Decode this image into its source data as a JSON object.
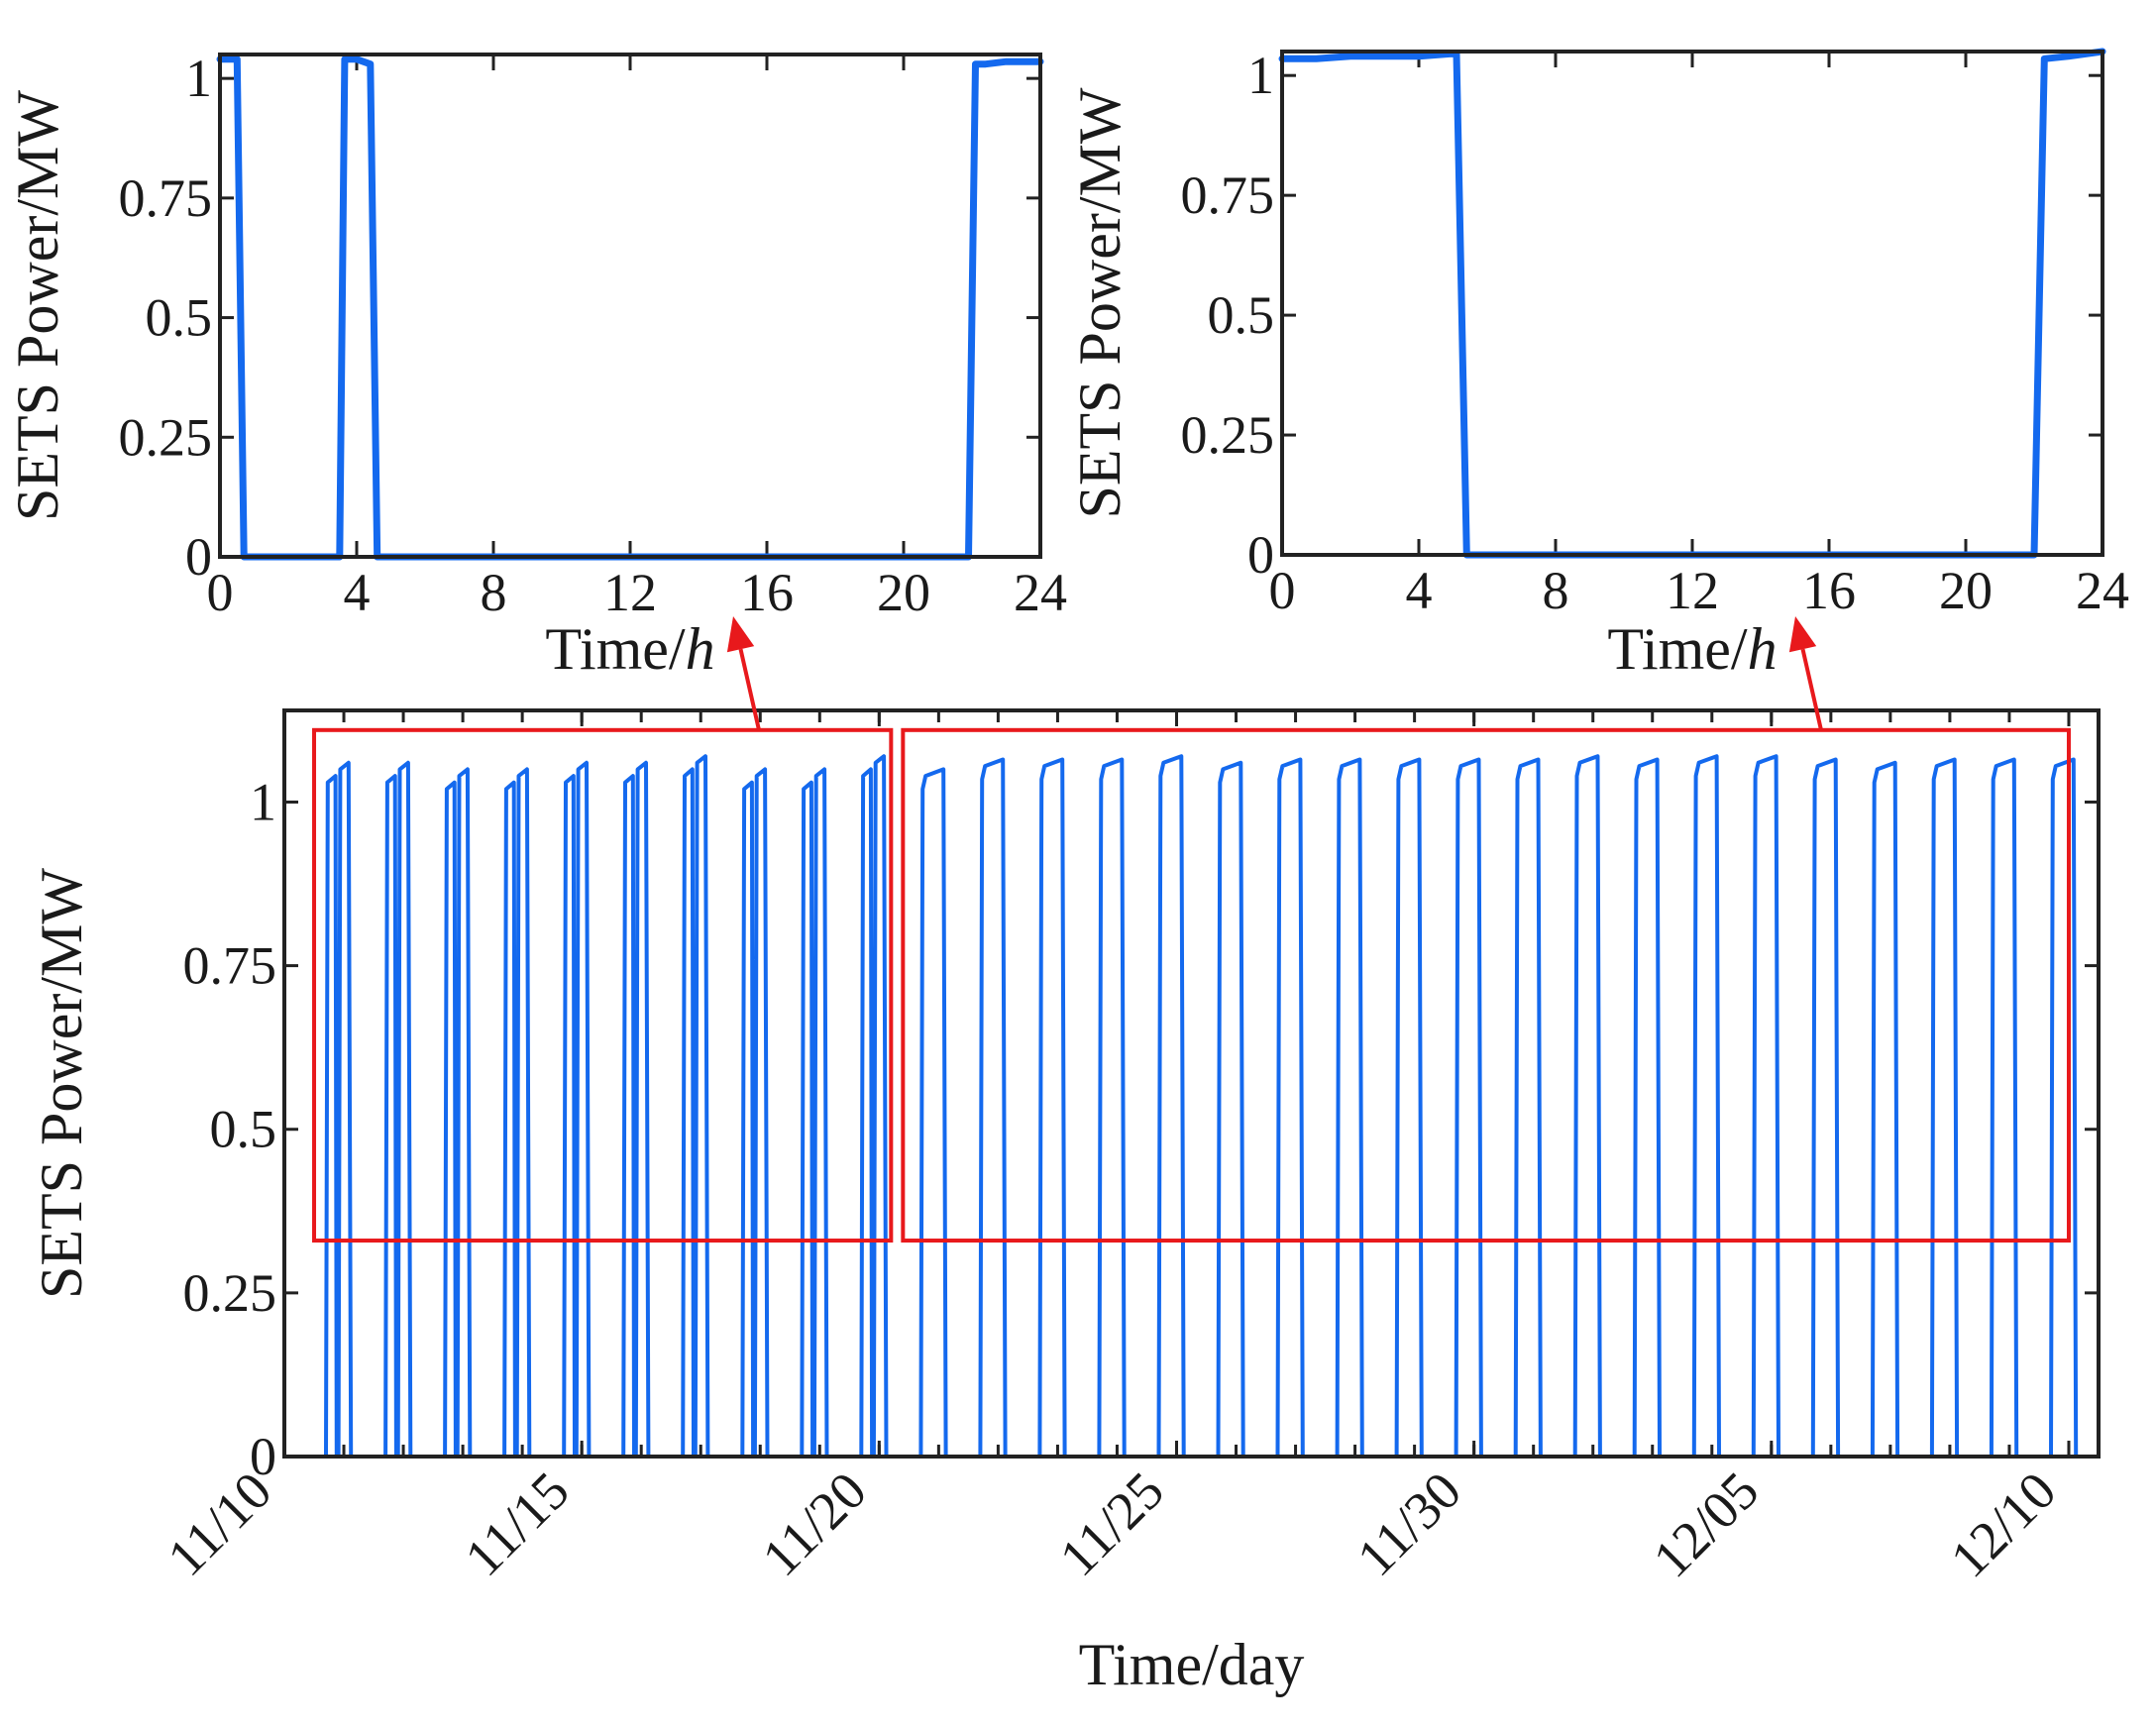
{
  "colors": {
    "series": "#1469ee",
    "frame": "#222222",
    "highlight": "#e8191c"
  },
  "chart_data": [
    {
      "id": "inset-left",
      "type": "line",
      "title": "",
      "xlabel": "Time/",
      "xlabel_italic": "h",
      "ylabel": "SETS Power/MW",
      "xlim": [
        0,
        24
      ],
      "ylim": [
        0,
        1.05
      ],
      "xticks": [
        0,
        4,
        8,
        12,
        16,
        20,
        24
      ],
      "xtick_labels": [
        "0",
        "4",
        "8",
        "12",
        "16",
        "20",
        "24"
      ],
      "yticks": [
        0,
        0.25,
        0.5,
        0.75,
        1
      ],
      "ytick_labels": [
        "0",
        "0.25",
        "0.5",
        "0.75",
        "1"
      ],
      "series": [
        {
          "name": "SETS Power",
          "x": [
            0,
            0.5,
            0.7,
            3.5,
            3.65,
            4.0,
            4.4,
            4.6,
            21.9,
            22.1,
            22.4,
            23.0,
            24.0
          ],
          "y": [
            1.04,
            1.04,
            0,
            0,
            1.04,
            1.04,
            1.03,
            0,
            0,
            1.03,
            1.03,
            1.035,
            1.035
          ]
        }
      ]
    },
    {
      "id": "inset-right",
      "type": "line",
      "title": "",
      "xlabel": "Time/",
      "xlabel_italic": "h",
      "ylabel": "SETS Power/MW",
      "xlim": [
        0,
        24
      ],
      "ylim": [
        0,
        1.05
      ],
      "xticks": [
        0,
        4,
        8,
        12,
        16,
        20,
        24
      ],
      "xtick_labels": [
        "0",
        "4",
        "8",
        "12",
        "16",
        "20",
        "24"
      ],
      "yticks": [
        0,
        0.25,
        0.5,
        0.75,
        1
      ],
      "ytick_labels": [
        "0",
        "0.25",
        "0.5",
        "0.75",
        "1"
      ],
      "series": [
        {
          "name": "SETS Power",
          "x": [
            0,
            1,
            2,
            3,
            4,
            4.9,
            5.1,
            5.4,
            22.0,
            22.3,
            23.0,
            23.5,
            24.0
          ],
          "y": [
            1.035,
            1.035,
            1.04,
            1.04,
            1.04,
            1.045,
            1.045,
            0,
            0,
            1.035,
            1.04,
            1.045,
            1.05
          ]
        }
      ]
    },
    {
      "id": "main",
      "type": "line",
      "title": "",
      "xlabel": "Time/day",
      "ylabel": "SETS Power/MW",
      "xlim": [
        0,
        30.5
      ],
      "ylim": [
        0,
        1.14
      ],
      "xticks": [
        0,
        5,
        10,
        15,
        20,
        25,
        30
      ],
      "xtick_labels": [
        "11/10",
        "11/15",
        "11/20",
        "11/25",
        "11/30",
        "12/05",
        "12/10"
      ],
      "minor_xtick_step": 1,
      "yticks": [
        0,
        0.25,
        0.5,
        0.75,
        1
      ],
      "ytick_labels": [
        "0",
        "0.25",
        "0.5",
        "0.75",
        "1"
      ],
      "daily_peaks": [
        1.06,
        1.06,
        1.05,
        1.05,
        1.06,
        1.06,
        1.07,
        1.05,
        1.05,
        1.07,
        1.05,
        1.065,
        1.065,
        1.065,
        1.07,
        1.06,
        1.065,
        1.065,
        1.065,
        1.065,
        1.065,
        1.07,
        1.065,
        1.07,
        1.07,
        1.065,
        1.06,
        1.065,
        1.065,
        1.065
      ],
      "double_peak_days": 10,
      "description": "Daily on/off operation: power near 1 MW from about 22:00 to 05:00, zero otherwise",
      "highlight_ranges_days": [
        [
          0.5,
          10.2
        ],
        [
          10.4,
          30.0
        ]
      ],
      "highlight_ylim": [
        0.33,
        1.11
      ]
    }
  ]
}
